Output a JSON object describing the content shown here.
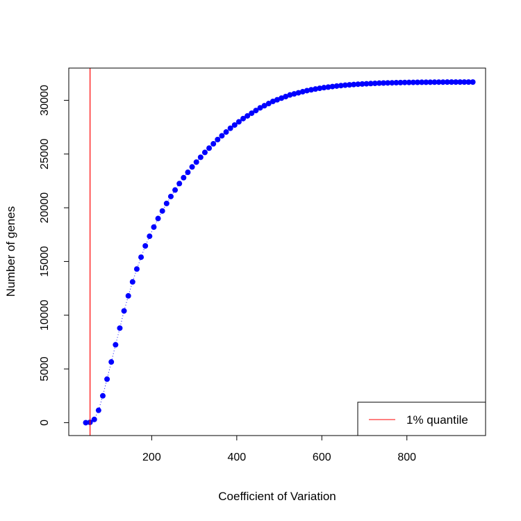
{
  "chart_data": {
    "type": "scatter",
    "title": "",
    "xlabel": "Coefficient of Variation",
    "ylabel": "Number of genes",
    "xlim": [
      5,
      985
    ],
    "ylim": [
      -1200,
      33000
    ],
    "xticks": [
      200,
      400,
      600,
      800
    ],
    "yticks": [
      0,
      5000,
      10000,
      15000,
      20000,
      25000,
      30000
    ],
    "grid": false,
    "series": [
      {
        "name": "",
        "color": "#0000ff",
        "line_style": "dotted",
        "x": [
          45,
          55,
          65,
          75,
          85,
          95,
          105,
          115,
          125,
          135,
          145,
          155,
          165,
          175,
          185,
          195,
          205,
          215,
          225,
          235,
          245,
          255,
          265,
          275,
          285,
          295,
          305,
          315,
          325,
          335,
          345,
          355,
          365,
          375,
          385,
          395,
          405,
          415,
          425,
          435,
          445,
          455,
          465,
          475,
          485,
          495,
          505,
          515,
          525,
          535,
          545,
          555,
          565,
          575,
          585,
          595,
          605,
          615,
          625,
          635,
          645,
          655,
          665,
          675,
          685,
          695,
          705,
          715,
          725,
          735,
          745,
          755,
          765,
          775,
          785,
          795,
          805,
          815,
          825,
          835,
          845,
          855,
          865,
          875,
          885,
          895,
          905,
          915,
          925,
          935,
          945,
          955
        ],
        "y": [
          0,
          30,
          300,
          1150,
          2500,
          4050,
          5650,
          7250,
          8800,
          10400,
          11800,
          13100,
          14300,
          15400,
          16450,
          17350,
          18200,
          19000,
          19700,
          20400,
          21050,
          21650,
          22250,
          22800,
          23300,
          23800,
          24250,
          24700,
          25150,
          25550,
          25950,
          26350,
          26700,
          27050,
          27400,
          27700,
          28000,
          28300,
          28550,
          28800,
          29050,
          29300,
          29500,
          29700,
          29900,
          30050,
          30200,
          30350,
          30500,
          30600,
          30700,
          30800,
          30900,
          30980,
          31050,
          31120,
          31180,
          31230,
          31280,
          31330,
          31370,
          31410,
          31440,
          31470,
          31500,
          31520,
          31540,
          31560,
          31580,
          31600,
          31610,
          31620,
          31630,
          31640,
          31650,
          31660,
          31665,
          31670,
          31675,
          31680,
          31683,
          31686,
          31689,
          31692,
          31694,
          31696,
          31698,
          31699,
          31700,
          31700,
          31700,
          31700
        ]
      }
    ],
    "vline": {
      "x": 55,
      "color": "#ff0000",
      "label": "1% quantile"
    },
    "legend": {
      "position": "bottom-right",
      "entries": [
        "1% quantile"
      ]
    }
  }
}
